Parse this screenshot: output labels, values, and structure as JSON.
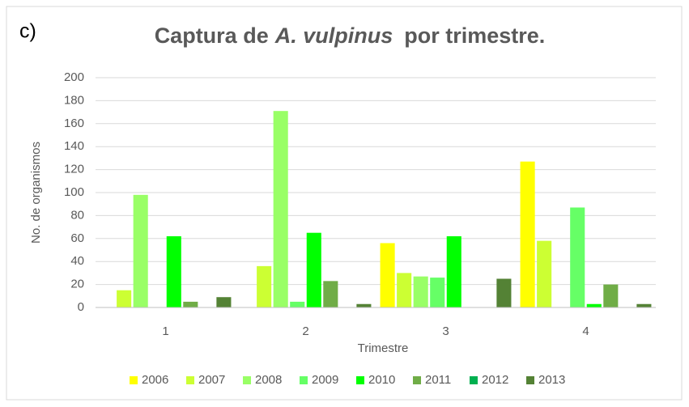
{
  "chart_data": {
    "type": "bar",
    "panel_label": "c)",
    "title": [
      "Captura de",
      "A. vulpinus",
      "por trimestre."
    ],
    "xlabel": "Trimestre",
    "ylabel": "No. de organismos",
    "categories": [
      "1",
      "2",
      "3",
      "4"
    ],
    "series": [
      {
        "name": "2006",
        "color": "#ffff00",
        "values": [
          0,
          0,
          56,
          127
        ]
      },
      {
        "name": "2007",
        "color": "#ccff33",
        "values": [
          15,
          36,
          30,
          58
        ]
      },
      {
        "name": "2008",
        "color": "#99ff66",
        "values": [
          98,
          171,
          27,
          0
        ]
      },
      {
        "name": "2009",
        "color": "#66ff66",
        "values": [
          0,
          5,
          26,
          87
        ]
      },
      {
        "name": "2010",
        "color": "#00ff00",
        "values": [
          62,
          65,
          62,
          3
        ]
      },
      {
        "name": "2011",
        "color": "#70ad47",
        "values": [
          5,
          23,
          0,
          20
        ]
      },
      {
        "name": "2012",
        "color": "#00b050",
        "values": [
          0,
          0,
          0,
          0
        ]
      },
      {
        "name": "2013",
        "color": "#548235",
        "values": [
          9,
          3,
          25,
          3
        ]
      }
    ],
    "ylim": [
      0,
      200
    ],
    "yticks": [
      0,
      20,
      40,
      60,
      80,
      100,
      120,
      140,
      160,
      180,
      200
    ],
    "grid": true,
    "legend": "bottom"
  }
}
